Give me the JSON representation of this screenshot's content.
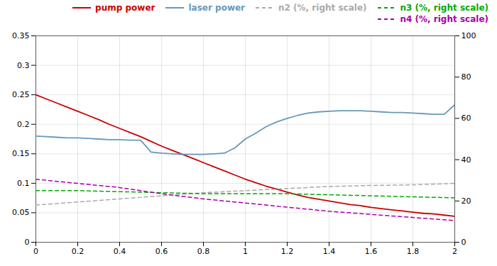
{
  "chart_data": {
    "type": "line",
    "xlim": [
      0,
      2
    ],
    "xticks": [
      0,
      0.2,
      0.4,
      0.6,
      0.8,
      1.0,
      1.2,
      1.4,
      1.6,
      1.8,
      2.0
    ],
    "ylim": [
      0,
      0.35
    ],
    "yticks": [
      0,
      0.05,
      0.1,
      0.15,
      0.2,
      0.25,
      0.3,
      0.35
    ],
    "y2lim": [
      0,
      100
    ],
    "y2ticks": [
      0,
      20,
      40,
      60,
      80,
      100
    ],
    "grid": true,
    "legend": "upper right",
    "series": [
      {
        "name": "pump power",
        "color": "#cc0000",
        "line_style": "solid",
        "x": [
          0.0,
          0.05,
          0.1,
          0.15,
          0.2,
          0.25,
          0.3,
          0.35,
          0.4,
          0.45,
          0.5,
          0.55,
          0.6,
          0.65,
          0.7,
          0.75,
          0.8,
          0.85,
          0.9,
          0.95,
          1.0,
          1.05,
          1.1,
          1.15,
          1.2,
          1.25,
          1.3,
          1.35,
          1.4,
          1.45,
          1.5,
          1.55,
          1.6,
          1.65,
          1.7,
          1.75,
          1.8,
          1.85,
          1.9,
          1.95,
          2.0
        ],
        "values": [
          0.25,
          0.243,
          0.236,
          0.229,
          0.222,
          0.215,
          0.208,
          0.2,
          0.193,
          0.186,
          0.179,
          0.171,
          0.163,
          0.156,
          0.149,
          0.142,
          0.135,
          0.128,
          0.121,
          0.114,
          0.107,
          0.101,
          0.095,
          0.09,
          0.085,
          0.08,
          0.076,
          0.073,
          0.07,
          0.067,
          0.064,
          0.062,
          0.059,
          0.057,
          0.055,
          0.053,
          0.051,
          0.049,
          0.048,
          0.046,
          0.044
        ]
      },
      {
        "name": "laser power",
        "color": "#6699bb",
        "line_style": "solid",
        "x": [
          0.0,
          0.05,
          0.1,
          0.15,
          0.2,
          0.25,
          0.3,
          0.35,
          0.4,
          0.45,
          0.5,
          0.55,
          0.6,
          0.65,
          0.7,
          0.75,
          0.8,
          0.85,
          0.9,
          0.95,
          1.0,
          1.05,
          1.1,
          1.15,
          1.2,
          1.25,
          1.3,
          1.35,
          1.4,
          1.45,
          1.5,
          1.55,
          1.6,
          1.65,
          1.7,
          1.75,
          1.8,
          1.85,
          1.9,
          1.95,
          2.0
        ],
        "values": [
          0.18,
          0.179,
          0.178,
          0.177,
          0.177,
          0.176,
          0.175,
          0.174,
          0.174,
          0.173,
          0.173,
          0.153,
          0.151,
          0.15,
          0.149,
          0.149,
          0.149,
          0.15,
          0.151,
          0.16,
          0.175,
          0.185,
          0.196,
          0.204,
          0.21,
          0.215,
          0.219,
          0.221,
          0.222,
          0.223,
          0.223,
          0.223,
          0.222,
          0.221,
          0.22,
          0.22,
          0.219,
          0.218,
          0.217,
          0.217,
          0.233
        ]
      },
      {
        "name": "n2 (%, right scale)",
        "color": "#aaaaaa",
        "line_style": "dashed",
        "axis": "y2",
        "x": [
          0.0,
          0.2,
          0.4,
          0.6,
          0.8,
          1.0,
          1.2,
          1.4,
          1.6,
          1.8,
          2.0
        ],
        "values": [
          18.0,
          19.5,
          21.0,
          22.5,
          24.0,
          25.0,
          26.0,
          27.0,
          27.5,
          27.8,
          28.5
        ]
      },
      {
        "name": "n3 (%, right scale)",
        "color": "#00aa00",
        "line_style": "dashed",
        "axis": "y2",
        "x": [
          0.0,
          0.2,
          0.4,
          0.6,
          0.8,
          1.0,
          1.2,
          1.4,
          1.6,
          1.8,
          2.0
        ],
        "values": [
          25.0,
          25.0,
          24.5,
          24.0,
          23.5,
          23.5,
          23.5,
          23.0,
          22.5,
          22.0,
          21.5
        ]
      },
      {
        "name": "n4 (%, right scale)",
        "color": "#aa00aa",
        "line_style": "dashed",
        "axis": "y2",
        "x": [
          0.0,
          0.2,
          0.4,
          0.6,
          0.8,
          1.0,
          1.2,
          1.4,
          1.6,
          1.8,
          2.0
        ],
        "values": [
          30.5,
          28.5,
          26.5,
          23.5,
          21.0,
          19.0,
          17.0,
          15.0,
          13.5,
          12.0,
          10.5
        ]
      }
    ]
  }
}
